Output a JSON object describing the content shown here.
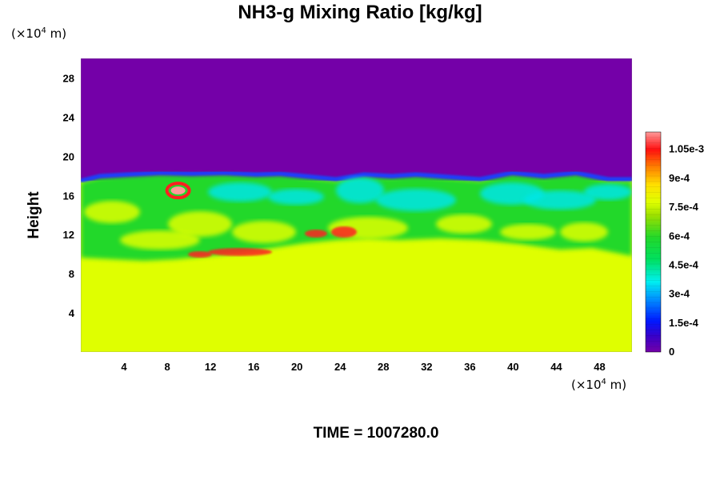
{
  "chart_data": {
    "type": "heatmap",
    "title": "NH3-g Mixing Ratio [kg/kg]",
    "ylabel": "Height",
    "x_unit_label": "(×10",
    "x_unit_exp": "4",
    "x_unit_suffix": " m)",
    "y_unit_label": "(×10",
    "y_unit_exp": "4",
    "y_unit_suffix": " m)",
    "xlim": [
      0,
      51
    ],
    "ylim": [
      0,
      30
    ],
    "x_ticks": [
      4,
      8,
      12,
      16,
      20,
      24,
      28,
      32,
      36,
      40,
      44,
      48
    ],
    "y_ticks": [
      4,
      8,
      12,
      16,
      20,
      24,
      28
    ],
    "colorbar": {
      "range": [
        0,
        0.00114
      ],
      "labels": [
        {
          "text": "0",
          "value": 0
        },
        {
          "text": "1.5e-4",
          "value": 0.00015
        },
        {
          "text": "3e-4",
          "value": 0.0003
        },
        {
          "text": "4.5e-4",
          "value": 0.00045
        },
        {
          "text": "6e-4",
          "value": 0.0006
        },
        {
          "text": "7.5e-4",
          "value": 0.00075
        },
        {
          "text": "9e-4",
          "value": 0.0009
        },
        {
          "text": "1.05e-3",
          "value": 0.00105
        }
      ]
    },
    "regions": {
      "lower_value": 0.00078,
      "upper_value": 0.0,
      "mid_layer_value_range": [
        0.00035,
        0.00075
      ],
      "boundary_height": 17.5,
      "max_value_near": {
        "x": 9,
        "y": 16.5
      }
    },
    "footer_label": "TIME = ",
    "footer_value": "1007280.0"
  },
  "colors": {
    "upper": "#7400a8",
    "lower": "#dfff00",
    "green": "#22d82a",
    "cyan": "#00e6e6",
    "blue": "#1a3cff",
    "red": "#ff2020"
  }
}
